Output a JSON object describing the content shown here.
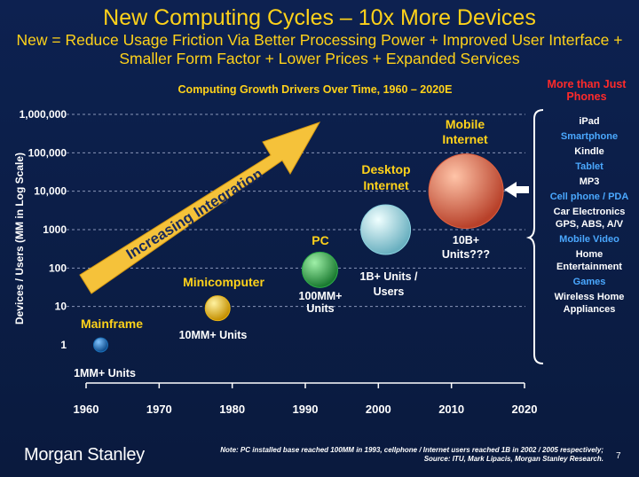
{
  "header": {
    "title": "New Computing Cycles – 10x More Devices",
    "subtitle": "New = Reduce Usage Friction Via Better Processing Power + Improved User Interface + Smaller Form Factor + Lower Prices + Expanded Services"
  },
  "chart_data": {
    "type": "scatter",
    "title": "Computing Growth Drivers Over Time, 1960 – 2020E",
    "xlabel": "",
    "ylabel": "Devices / Users (MM in Log Scale)",
    "x_ticks": [
      "1960",
      "1970",
      "1980",
      "1990",
      "2000",
      "2010",
      "2020"
    ],
    "y_ticks": [
      "1",
      "10",
      "100",
      "1000",
      "10,000",
      "100,000",
      "1,000,000"
    ],
    "xlim": [
      1960,
      2020
    ],
    "ylim": [
      1,
      1000000
    ],
    "y_scale": "log",
    "grid": "horizontal dashed",
    "arrow_label": "Increasing Integration",
    "points": [
      {
        "name": "Mainframe",
        "x": 1962,
        "y": 1,
        "color": "#1a6fb8",
        "size": "smallest",
        "units": "1MM+ Units"
      },
      {
        "name": "Minicomputer",
        "x": 1978,
        "y": 9,
        "color": "#e7b417",
        "size": "small",
        "units": "10MM+ Units"
      },
      {
        "name": "PC",
        "x": 1992,
        "y": 90,
        "color": "#2fb04a",
        "size": "medium",
        "units": "100MM+ Units"
      },
      {
        "name": "Desktop Internet",
        "x": 2001,
        "y": 1000,
        "color": "#8cd3e0",
        "size": "large",
        "units": "1B+ Units / Users"
      },
      {
        "name": "Mobile Internet",
        "x": 2012,
        "y": 10000,
        "color": "#e0603f",
        "size": "largest",
        "units": "10B+ Units???"
      }
    ]
  },
  "sidebar": {
    "title": "More than Just Phones",
    "items": [
      {
        "label": "iPad",
        "color": "#ffffff"
      },
      {
        "label": "Smartphone",
        "color": "#4aa8ff"
      },
      {
        "label": "Kindle",
        "color": "#ffffff"
      },
      {
        "label": "Tablet",
        "color": "#4aa8ff"
      },
      {
        "label": "MP3",
        "color": "#ffffff"
      },
      {
        "label": "Cell phone / PDA",
        "color": "#4aa8ff"
      },
      {
        "label": "Car Electronics GPS, ABS, A/V",
        "color": "#ffffff"
      },
      {
        "label": "Mobile Video",
        "color": "#4aa8ff"
      },
      {
        "label": "Home Entertainment",
        "color": "#ffffff"
      },
      {
        "label": "Games",
        "color": "#4aa8ff"
      },
      {
        "label": "Wireless Home Appliances",
        "color": "#ffffff"
      }
    ]
  },
  "footer": {
    "logo": "Morgan Stanley",
    "note": "Note: PC installed base reached 100MM in 1993, cellphone / Internet users reached 1B in 2002 / 2005 respectively;",
    "source": "Source: ITU, Mark Lipacis, Morgan Stanley Research.",
    "page": "7"
  }
}
